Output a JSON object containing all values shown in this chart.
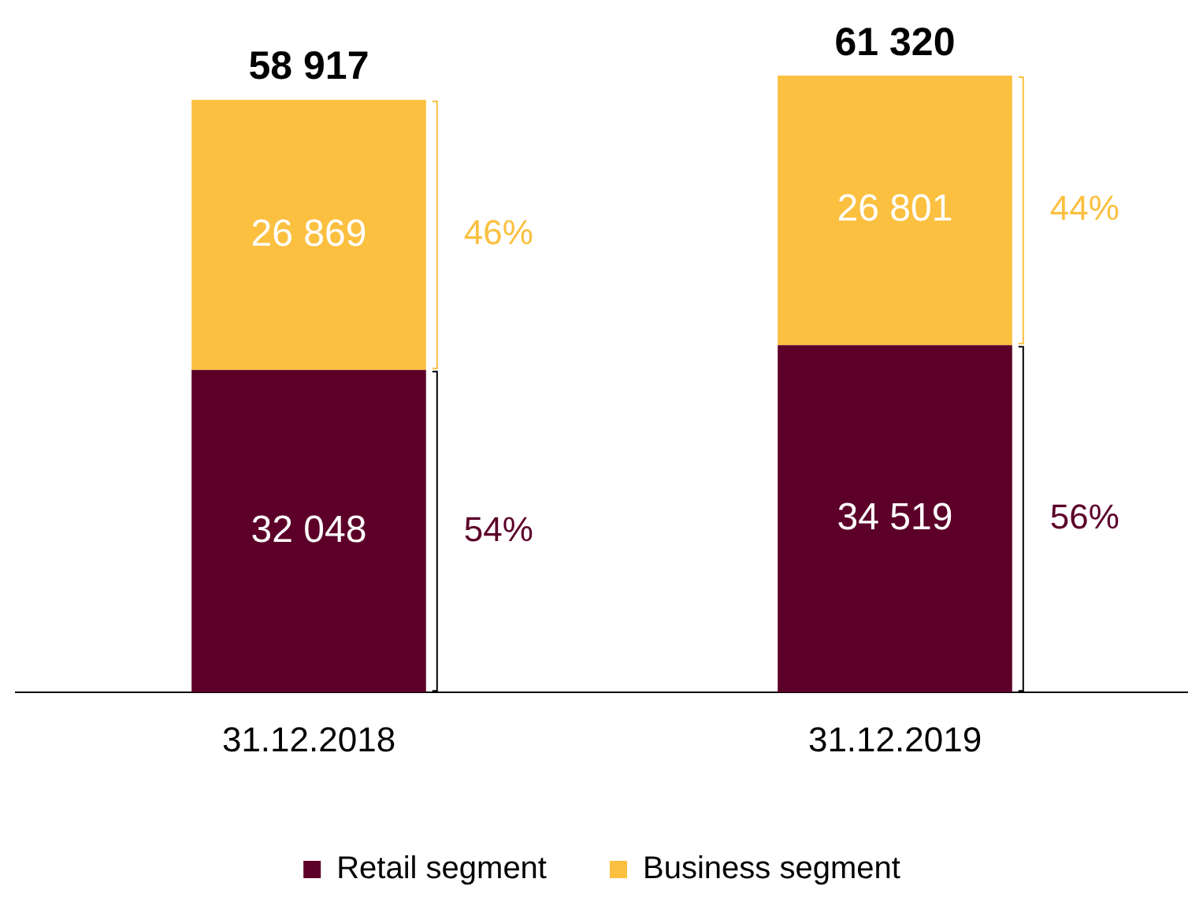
{
  "chart_data": {
    "type": "bar",
    "stacked": true,
    "categories": [
      "31.12.2018",
      "31.12.2019"
    ],
    "series": [
      {
        "name": "Retail segment",
        "color": "#5c0029",
        "values": [
          32048,
          34519
        ],
        "value_labels": [
          "32 048",
          "34 519"
        ]
      },
      {
        "name": "Business segment",
        "color": "#fbc040",
        "values": [
          26869,
          26801
        ],
        "value_labels": [
          "26 869",
          "26 801"
        ]
      }
    ],
    "totals": [
      "58 917",
      "61 320"
    ],
    "annotations": [
      "54%",
      "46%",
      "56%",
      "44%"
    ],
    "legend": "bottom",
    "grid": false
  }
}
